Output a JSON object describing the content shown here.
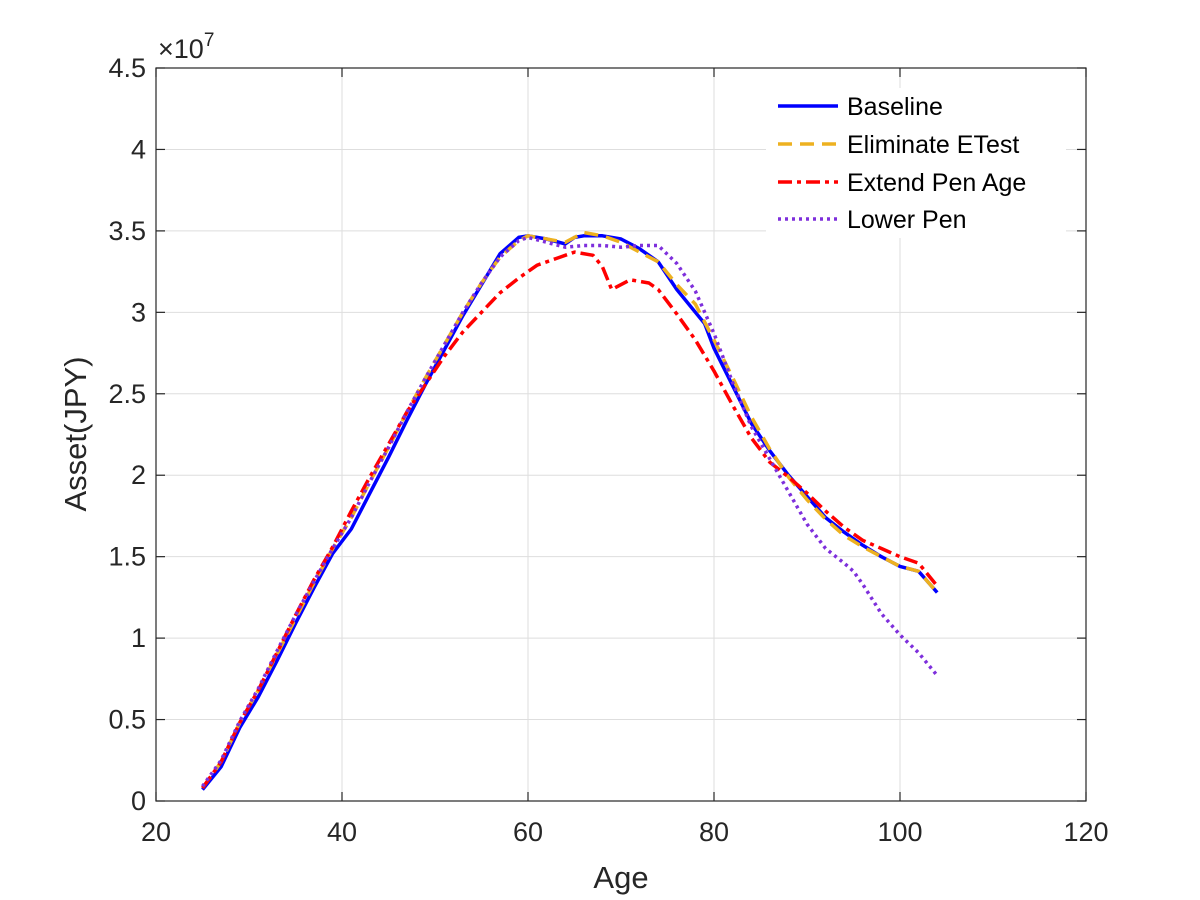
{
  "chart_data": {
    "type": "line",
    "title": "",
    "xlabel": "Age",
    "ylabel": "Asset(JPY)",
    "xlim": [
      20,
      120
    ],
    "ylim": [
      0,
      4.5
    ],
    "xticks": [
      "20",
      "40",
      "60",
      "80",
      "100",
      "120"
    ],
    "yticks": [
      "0",
      "0.5",
      "1",
      "1.5",
      "2",
      "2.5",
      "3",
      "3.5",
      "4",
      "4.5"
    ],
    "xtick_values": [
      20,
      40,
      60,
      80,
      100,
      120
    ],
    "ytick_values": [
      0,
      0.5,
      1,
      1.5,
      2,
      2.5,
      3,
      3.5,
      4,
      4.5
    ],
    "y_exponent_base": "×10",
    "y_exponent_power": "7",
    "grid": true,
    "legend_position": "top-right",
    "series": [
      {
        "name": "Baseline",
        "color": "#0000ff",
        "style": "solid",
        "x": [
          25,
          27,
          29,
          31,
          33,
          35,
          37,
          39,
          41,
          43,
          45,
          47,
          49,
          51,
          53,
          55,
          57,
          59,
          60,
          62,
          64,
          65,
          66,
          68,
          70,
          72,
          74,
          76,
          78,
          79,
          80,
          82,
          84,
          86,
          88,
          90,
          92,
          94,
          96,
          98,
          100,
          102,
          104
        ],
        "y": [
          0.07,
          0.21,
          0.45,
          0.64,
          0.86,
          1.09,
          1.31,
          1.52,
          1.67,
          1.89,
          2.11,
          2.34,
          2.56,
          2.77,
          2.98,
          3.17,
          3.36,
          3.46,
          3.47,
          3.45,
          3.42,
          3.46,
          3.47,
          3.47,
          3.45,
          3.39,
          3.31,
          3.14,
          3.0,
          2.93,
          2.78,
          2.55,
          2.32,
          2.15,
          2.0,
          1.87,
          1.74,
          1.65,
          1.57,
          1.5,
          1.44,
          1.41,
          1.28
        ]
      },
      {
        "name": "Eliminate ETest",
        "color": "#edb120",
        "style": "dashed",
        "x": [
          25,
          27,
          29,
          31,
          33,
          35,
          37,
          39,
          41,
          43,
          45,
          47,
          49,
          51,
          53,
          55,
          57,
          59,
          60,
          62,
          64,
          66,
          68,
          70,
          72,
          74,
          76,
          78,
          80,
          82,
          84,
          86,
          88,
          90,
          92,
          94,
          96,
          98,
          100,
          102,
          104
        ],
        "y": [
          0.08,
          0.24,
          0.48,
          0.68,
          0.9,
          1.12,
          1.34,
          1.55,
          1.74,
          1.96,
          2.17,
          2.39,
          2.6,
          2.8,
          3.0,
          3.18,
          3.34,
          3.44,
          3.47,
          3.45,
          3.43,
          3.49,
          3.47,
          3.43,
          3.37,
          3.31,
          3.17,
          3.05,
          2.83,
          2.6,
          2.36,
          2.16,
          1.99,
          1.85,
          1.73,
          1.63,
          1.56,
          1.5,
          1.44,
          1.41,
          1.28
        ]
      },
      {
        "name": "Extend Pen Age",
        "color": "#ff0000",
        "style": "dashdot",
        "x": [
          25,
          27,
          29,
          31,
          33,
          35,
          37,
          39,
          41,
          43,
          45,
          47,
          49,
          51,
          53,
          55,
          57,
          59,
          61,
          63,
          65,
          67,
          68,
          69,
          71,
          73,
          74,
          76,
          78,
          80,
          82,
          84,
          86,
          88,
          90,
          92,
          94,
          96,
          98,
          100,
          102,
          104
        ],
        "y": [
          0.08,
          0.24,
          0.48,
          0.68,
          0.91,
          1.14,
          1.36,
          1.56,
          1.78,
          1.99,
          2.19,
          2.39,
          2.56,
          2.73,
          2.88,
          3.0,
          3.12,
          3.21,
          3.29,
          3.33,
          3.37,
          3.35,
          3.28,
          3.14,
          3.2,
          3.18,
          3.14,
          2.99,
          2.83,
          2.64,
          2.43,
          2.23,
          2.08,
          1.99,
          1.89,
          1.78,
          1.68,
          1.6,
          1.55,
          1.5,
          1.46,
          1.32
        ]
      },
      {
        "name": "Lower Pen",
        "color": "#7e2fdc",
        "style": "dotted",
        "x": [
          25,
          27,
          29,
          31,
          33,
          35,
          37,
          39,
          41,
          43,
          45,
          47,
          49,
          51,
          53,
          55,
          57,
          59,
          60,
          62,
          64,
          66,
          68,
          70,
          72,
          74,
          76,
          78,
          80,
          82,
          84,
          86,
          88,
          90,
          92,
          94,
          95,
          96,
          98,
          100,
          102,
          104
        ],
        "y": [
          0.09,
          0.25,
          0.49,
          0.69,
          0.92,
          1.14,
          1.35,
          1.55,
          1.74,
          1.96,
          2.17,
          2.39,
          2.6,
          2.8,
          3.0,
          3.18,
          3.34,
          3.44,
          3.46,
          3.43,
          3.4,
          3.41,
          3.41,
          3.4,
          3.41,
          3.41,
          3.3,
          3.13,
          2.87,
          2.57,
          2.3,
          2.1,
          1.9,
          1.7,
          1.55,
          1.46,
          1.41,
          1.33,
          1.15,
          1.02,
          0.91,
          0.77
        ]
      }
    ]
  }
}
